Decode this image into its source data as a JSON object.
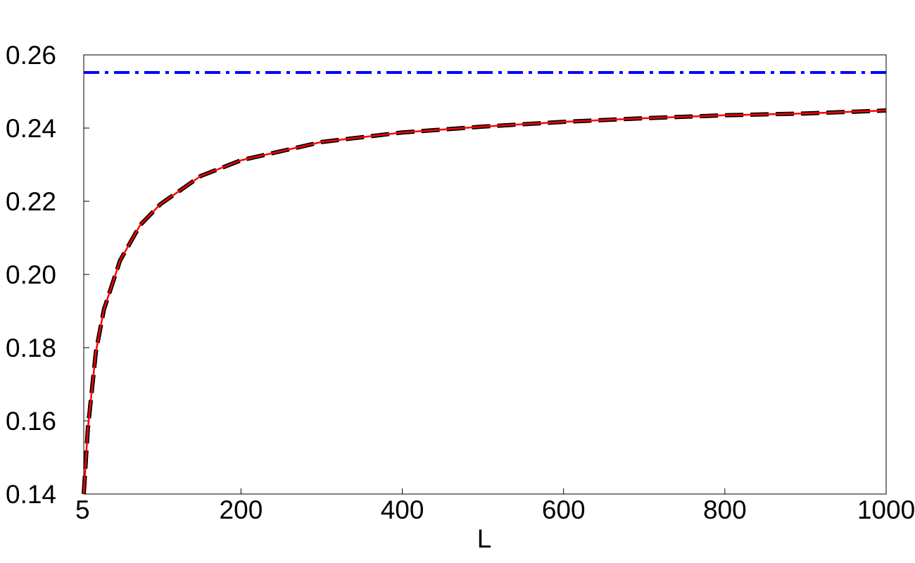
{
  "chart_data": {
    "type": "line",
    "x_label": "L",
    "xlim": [
      5,
      1000
    ],
    "xticks": [
      5,
      200,
      400,
      600,
      800,
      1000
    ],
    "ylim": [
      0.14,
      0.26
    ],
    "yticks": [
      0.14,
      0.16,
      0.18,
      {
        "value": 0.2,
        "label": "0.20"
      },
      0.22,
      0.24,
      0.26
    ],
    "grid": false,
    "series": [
      {
        "color": "#000000",
        "dash": "dashed",
        "width": 6,
        "x": [
          5,
          10,
          20,
          30,
          50,
          75,
          100,
          150,
          200,
          300,
          400,
          500,
          600,
          700,
          800,
          900,
          1000
        ],
        "values": [
          0.14,
          0.1577,
          0.1788,
          0.1904,
          0.2038,
          0.2135,
          0.2192,
          0.2269,
          0.2312,
          0.2362,
          0.2388,
          0.2404,
          0.2417,
          0.2427,
          0.2435,
          0.244,
          0.2448
        ]
      },
      {
        "color": "#ff0000",
        "dash": "solid",
        "width": 2.5,
        "x": [
          5,
          10,
          20,
          30,
          50,
          75,
          100,
          150,
          200,
          300,
          400,
          500,
          600,
          700,
          800,
          900,
          1000
        ],
        "values": [
          0.14,
          0.1577,
          0.1788,
          0.1904,
          0.2038,
          0.2135,
          0.2192,
          0.2269,
          0.2312,
          0.2362,
          0.2388,
          0.2404,
          0.2417,
          0.2427,
          0.2435,
          0.244,
          0.2448
        ]
      },
      {
        "color": "#0000ff",
        "dash": "dashdot",
        "width": 4,
        "x": [
          5,
          1000
        ],
        "values": [
          0.2552,
          0.2552
        ]
      }
    ]
  }
}
